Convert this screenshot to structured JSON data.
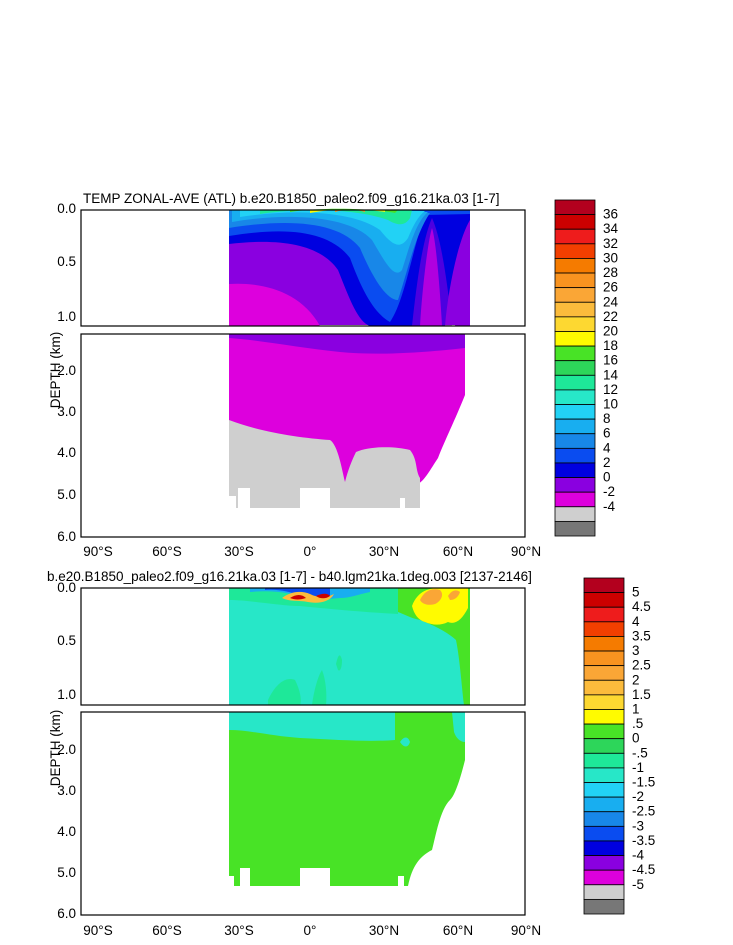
{
  "chart_data": [
    {
      "type": "heatmap",
      "title": "TEMP ZONAL-AVE (ATL) b.e20.B1850_paleo2.f09_g16.21ka.03 [1-7]",
      "ylabel": "DEPTH (km)",
      "x_ticks": [
        "90°S",
        "60°S",
        "30°S",
        "0°",
        "30°N",
        "60°N",
        "90°N"
      ],
      "y_ticks_upper": [
        "0.0",
        "0.5",
        "1.0"
      ],
      "y_ticks_lower": [
        "2.0",
        "3.0",
        "4.0",
        "5.0",
        "6.0"
      ],
      "xlim": [
        -90,
        90
      ],
      "ylim": [
        6.0,
        0.0
      ],
      "colorbar": {
        "labels": [
          "36",
          "34",
          "32",
          "30",
          "28",
          "26",
          "24",
          "22",
          "20",
          "18",
          "16",
          "14",
          "12",
          "10",
          "8",
          "6",
          "4",
          "2",
          "0",
          "-2",
          "-4"
        ],
        "colors": [
          "#b3001e",
          "#cc0000",
          "#ee1c1c",
          "#f23f00",
          "#f57b00",
          "#f89320",
          "#faa636",
          "#fbbb3c",
          "#fdd831",
          "#fffb00",
          "#48e326",
          "#2dd65a",
          "#1ee899",
          "#27e7c8",
          "#22d2f5",
          "#18aef0",
          "#1887e8",
          "#0a4cf0",
          "#0000e0",
          "#8a00e0",
          "#dd00dd",
          "#cfcfcf",
          "#777777"
        ]
      }
    },
    {
      "type": "heatmap",
      "title": "b.e20.B1850_paleo2.f09_g16.21ka.03 [1-7] - b40.lgm21ka.1deg.003 [2137-2146]",
      "ylabel": "DEPTH (km)",
      "x_ticks": [
        "90°S",
        "60°S",
        "30°S",
        "0°",
        "30°N",
        "60°N",
        "90°N"
      ],
      "y_ticks_upper": [
        "0.0",
        "0.5",
        "1.0"
      ],
      "y_ticks_lower": [
        "2.0",
        "3.0",
        "4.0",
        "5.0",
        "6.0"
      ],
      "xlim": [
        -90,
        90
      ],
      "ylim": [
        6.0,
        0.0
      ],
      "colorbar": {
        "labels": [
          "5",
          "4.5",
          "4",
          "3.5",
          "3",
          "2.5",
          "2",
          "1.5",
          "1",
          ".5",
          "0",
          "-.5",
          "-1",
          "-1.5",
          "-2",
          "-2.5",
          "-3",
          "-3.5",
          "-4",
          "-4.5",
          "-5"
        ],
        "colors": [
          "#b3001e",
          "#cc0000",
          "#ee1c1c",
          "#f23f00",
          "#f57b00",
          "#f89320",
          "#faa636",
          "#fbbb3c",
          "#fdd831",
          "#fffb00",
          "#48e326",
          "#2dd65a",
          "#1ee899",
          "#27e7c8",
          "#22d2f5",
          "#18aef0",
          "#1887e8",
          "#0a4cf0",
          "#0000e0",
          "#8a00e0",
          "#dd00dd",
          "#cfcfcf",
          "#777777"
        ]
      }
    }
  ]
}
